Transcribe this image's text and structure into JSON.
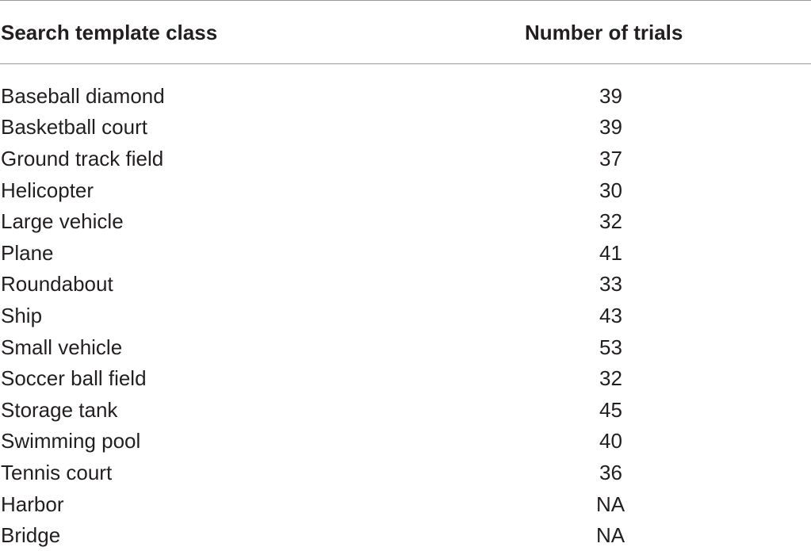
{
  "table": {
    "headers": [
      "Search template class",
      "Number of trials"
    ],
    "rows": [
      {
        "class": "Baseball diamond",
        "trials": "39"
      },
      {
        "class": "Basketball court",
        "trials": "39"
      },
      {
        "class": "Ground track field",
        "trials": "37"
      },
      {
        "class": "Helicopter",
        "trials": "30"
      },
      {
        "class": "Large vehicle",
        "trials": "32"
      },
      {
        "class": "Plane",
        "trials": "41"
      },
      {
        "class": "Roundabout",
        "trials": "33"
      },
      {
        "class": "Ship",
        "trials": "43"
      },
      {
        "class": "Small vehicle",
        "trials": "53"
      },
      {
        "class": "Soccer ball field",
        "trials": "32"
      },
      {
        "class": "Storage tank",
        "trials": "45"
      },
      {
        "class": "Swimming pool",
        "trials": "40"
      },
      {
        "class": "Tennis court",
        "trials": "36"
      },
      {
        "class": "Harbor",
        "trials": "NA"
      },
      {
        "class": "Bridge",
        "trials": "NA"
      }
    ]
  }
}
